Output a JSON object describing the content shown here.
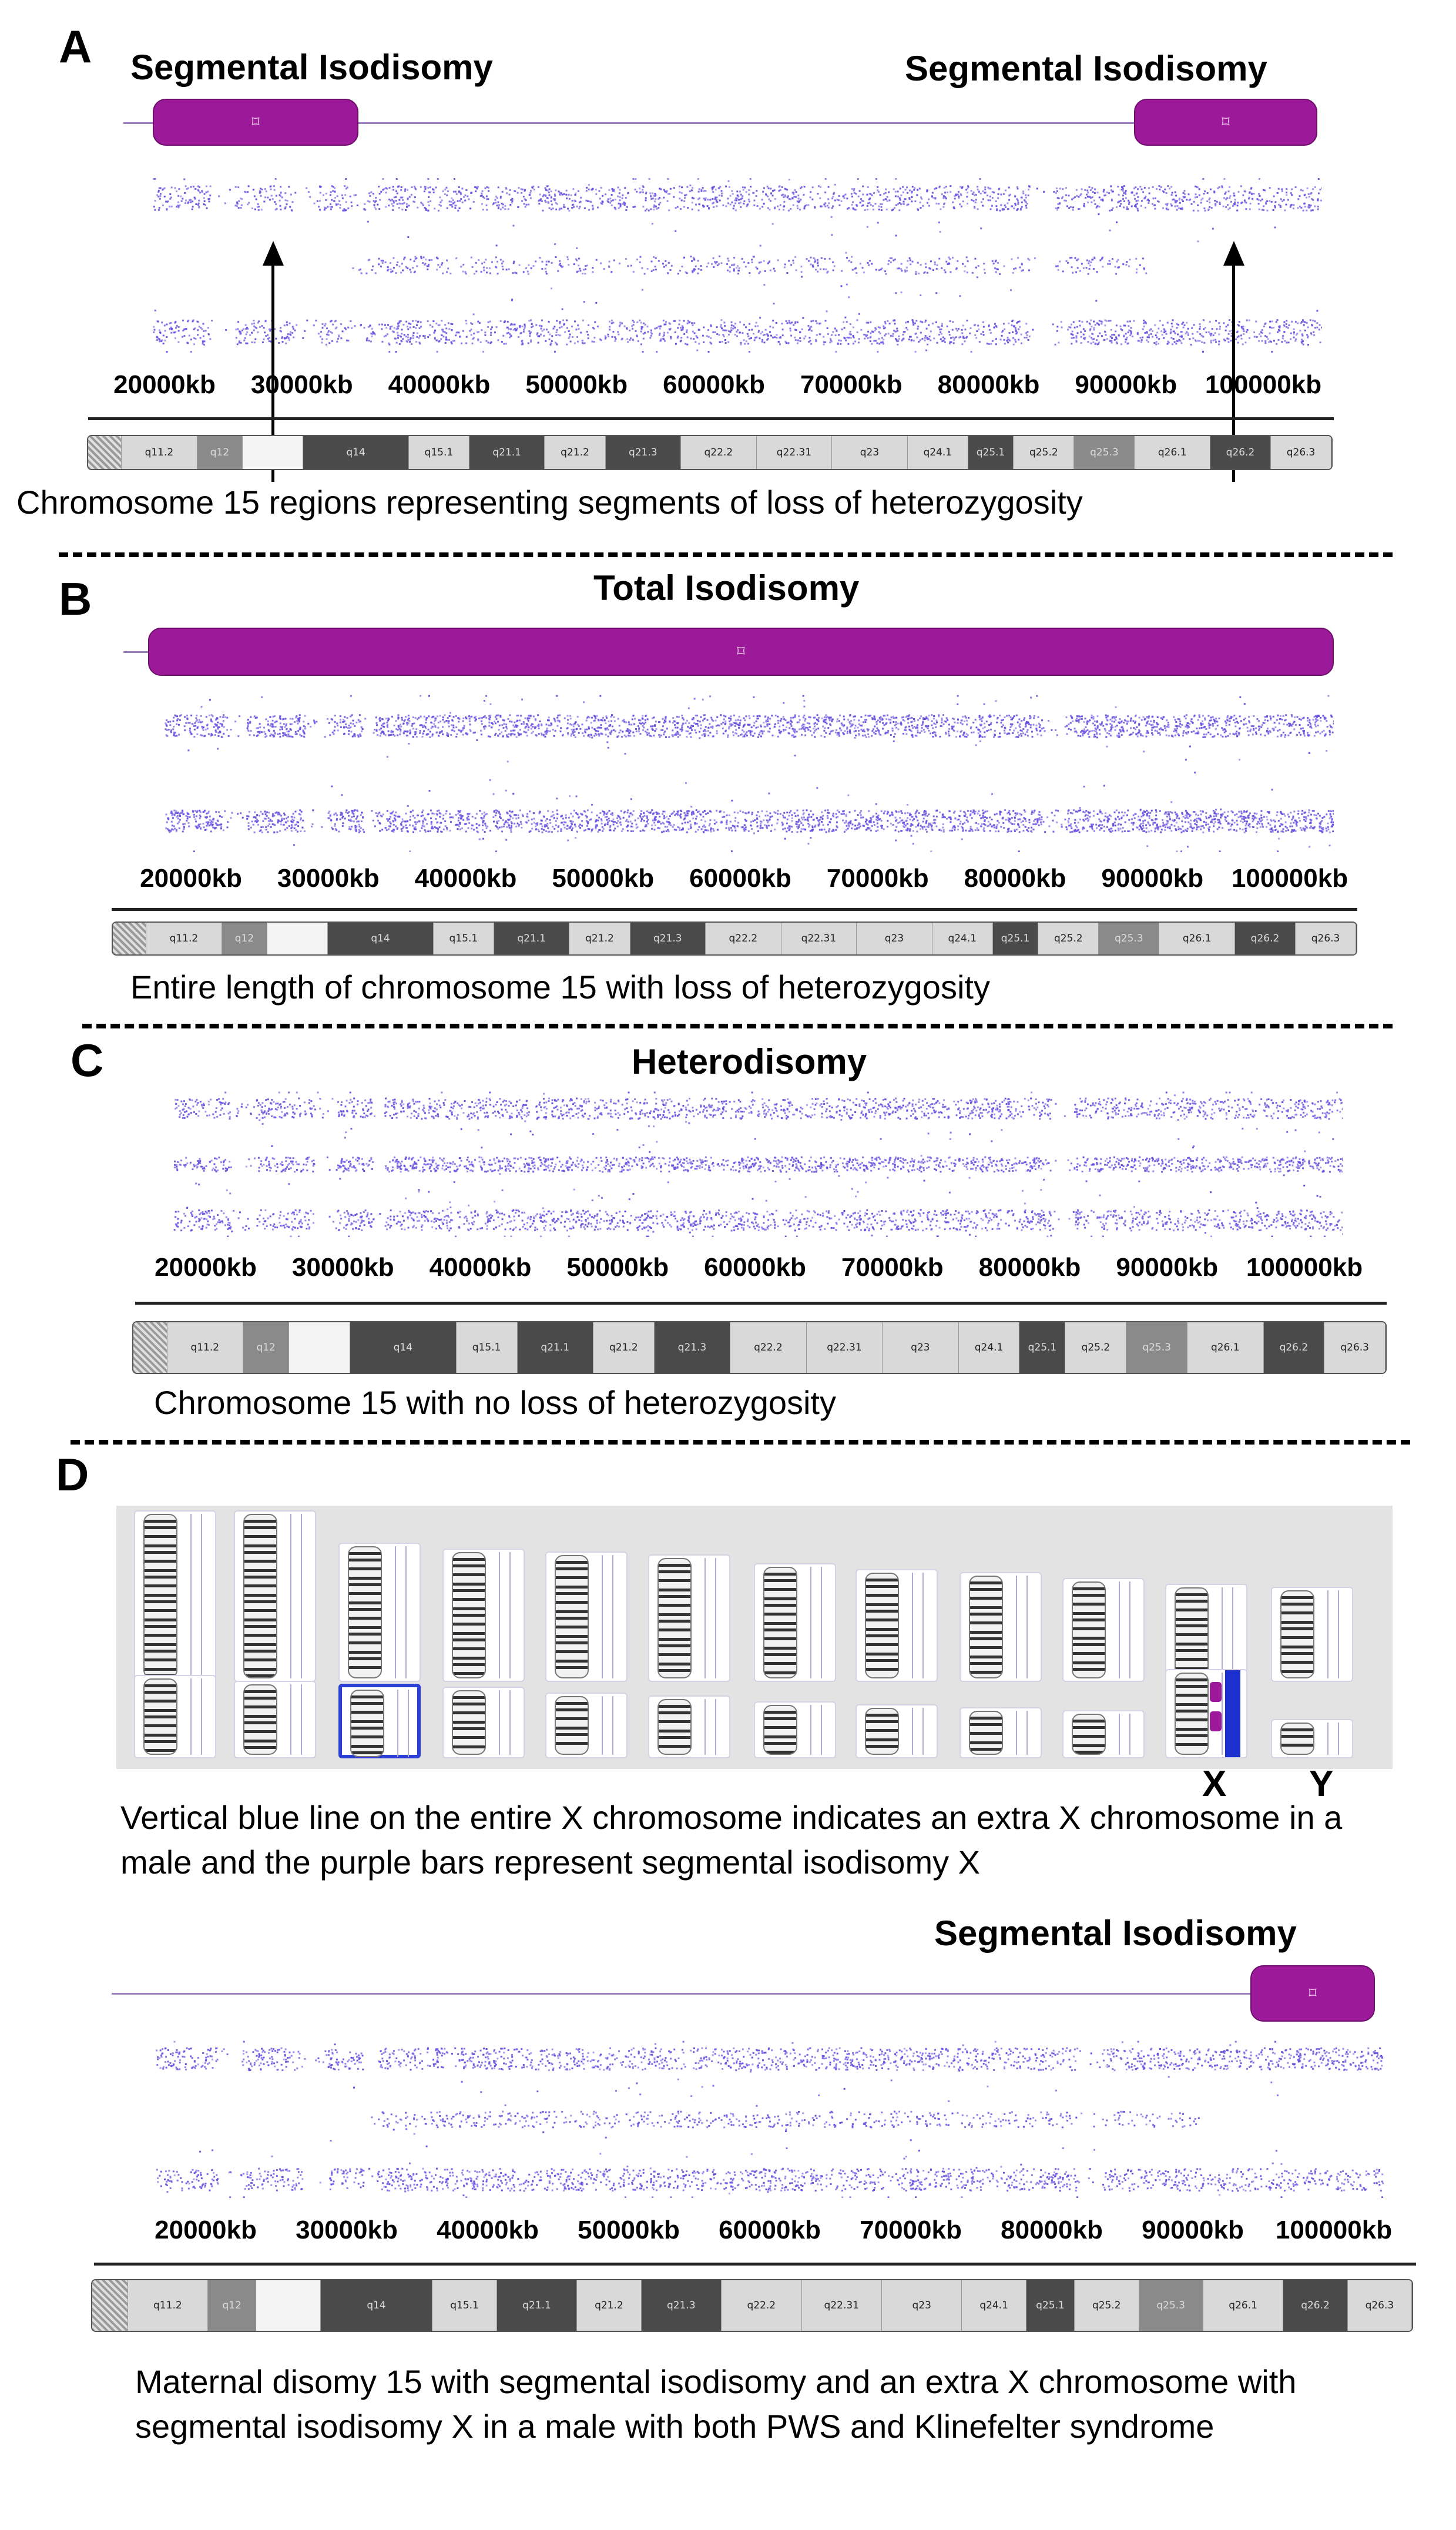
{
  "panels": {
    "A": {
      "letter": "A",
      "title_left": "Segmental Isodisomy",
      "title_right": "Segmental Isodisomy",
      "caption": "Chromosome 15 regions representing segments of loss of heterozygosity"
    },
    "B": {
      "letter": "B",
      "title": "Total Isodisomy",
      "caption": "Entire length of chromosome 15 with loss of heterozygosity"
    },
    "C": {
      "letter": "C",
      "title": "Heterodisomy",
      "caption": "Chromosome 15 with no loss of heterozygosity"
    },
    "D": {
      "letter": "D",
      "label_x": "X",
      "label_y": "Y",
      "caption": "Vertical blue line on the entire X chromosome indicates an extra X chromosome in a male and the purple bars represent segmental isodisomy X",
      "title": "Segmental Isodisomy",
      "final_caption": "Maternal disomy 15 with segmental isodisomy and an extra X chromosome with segmental isodisomy X in a male with both PWS and Klinefelter syndrome"
    }
  },
  "axis_ticks": [
    "20000kb",
    "30000kb",
    "40000kb",
    "50000kb",
    "60000kb",
    "70000kb",
    "80000kb",
    "90000kb",
    "100000kb"
  ],
  "bands": [
    {
      "label": "",
      "shade": "hatch"
    },
    {
      "label": "q11.2",
      "shade": "light"
    },
    {
      "label": "q12",
      "shade": "mid"
    },
    {
      "label": "",
      "shade": "white"
    },
    {
      "label": "q14",
      "shade": "dark"
    },
    {
      "label": "q15.1",
      "shade": "light"
    },
    {
      "label": "q21.1",
      "shade": "dark"
    },
    {
      "label": "q21.2",
      "shade": "light"
    },
    {
      "label": "q21.3",
      "shade": "dark"
    },
    {
      "label": "q22.2",
      "shade": "light"
    },
    {
      "label": "q22.31",
      "shade": "light"
    },
    {
      "label": "q23",
      "shade": "light"
    },
    {
      "label": "q24.1",
      "shade": "light"
    },
    {
      "label": "q25.1",
      "shade": "dark"
    },
    {
      "label": "q25.2",
      "shade": "light"
    },
    {
      "label": "q25.3",
      "shade": "mid"
    },
    {
      "label": "q26.1",
      "shade": "light"
    },
    {
      "label": "q26.2",
      "shade": "dark"
    },
    {
      "label": "q26.3",
      "shade": "light"
    }
  ],
  "colors": {
    "roh_bar": "#9c1a99",
    "baf_dots": "#6a4fe0",
    "blue_line": "#1c2fcf",
    "karyogram_bg": "#e3e3e3"
  }
}
